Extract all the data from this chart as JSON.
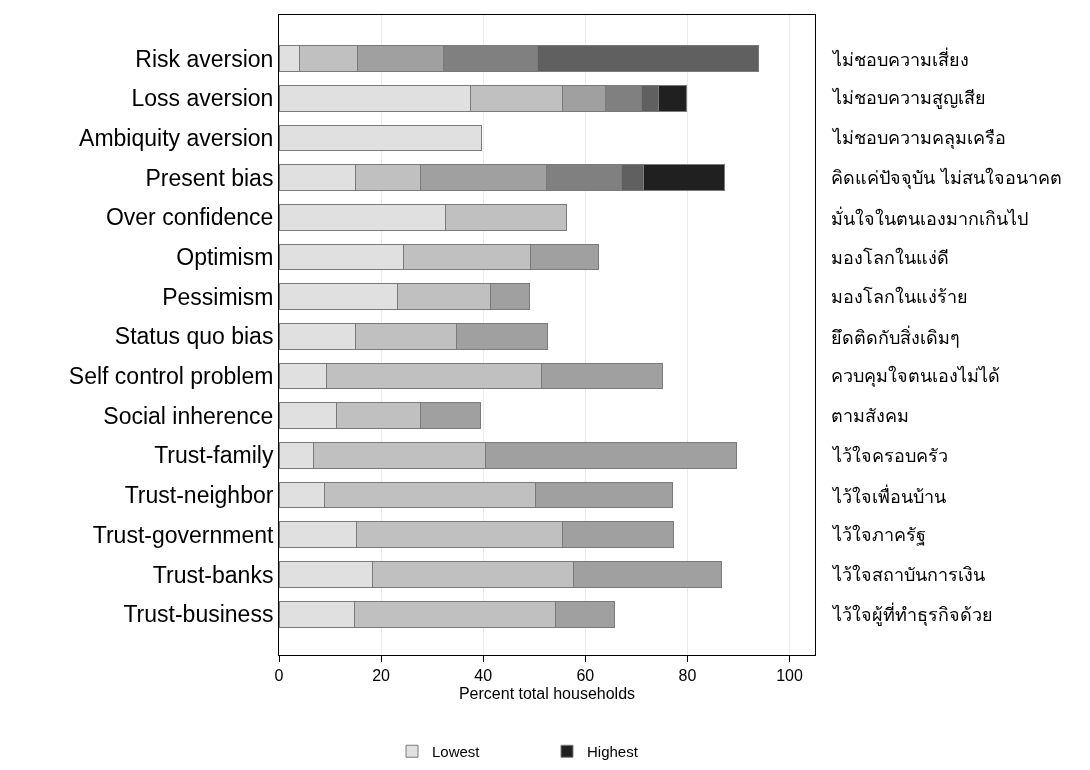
{
  "chart_data": {
    "type": "bar",
    "orientation": "horizontal",
    "stacked": true,
    "categories": [
      "Risk aversion",
      "Loss aversion",
      "Ambiquity aversion",
      "Present bias",
      "Over confidence",
      "Optimism",
      "Pessimism",
      "Status quo bias",
      "Self control problem",
      "Social inherence",
      "Trust-family",
      "Trust-neighbor",
      "Trust-government",
      "Trust-banks",
      "Trust-business"
    ],
    "y2_categories": [
      "ไม่ชอบความเสี่ยง",
      "ไม่ชอบความสูญเสีย",
      "ไม่ชอบความคลุมเครือ",
      "คิดแค่ปัจจุบัน ไม่สนใจอนาคต",
      "มั่นใจในตนเองมากเกินไป",
      "มองโลกในแง่ดี",
      "มองโลกในแง่ร้าย",
      "ยึดติดกับสิ่งเดิมๆ",
      "ควบคุมใจตนเองไม่ได้",
      "ตามสังคม",
      "ไว้ใจครอบครัว",
      "ไว้ใจเพื่อนบ้าน",
      "ไว้ใจภาครัฐ",
      "ไว้ใจสถาบันการเงิน",
      "ไว้ใจผู้ที่ทำธุรกิจด้วย"
    ],
    "series": [
      {
        "name": "Lowest",
        "color": "#e0e0e0",
        "values": [
          4.0,
          37.5,
          39.7,
          15.0,
          32.6,
          24.4,
          23.2,
          15.0,
          9.3,
          11.2,
          6.7,
          9.0,
          15.2,
          18.4,
          14.7
        ]
      },
      {
        "color": "#c0c0c0",
        "values": [
          11.4,
          18.0,
          null,
          12.7,
          23.7,
          24.9,
          18.2,
          19.8,
          42.1,
          16.6,
          33.8,
          41.3,
          40.4,
          39.2,
          39.4
        ]
      },
      {
        "color": "#a0a0a0",
        "values": [
          16.8,
          8.4,
          null,
          24.7,
          null,
          13.2,
          7.7,
          17.7,
          23.7,
          11.7,
          49.2,
          26.8,
          21.7,
          29.0,
          11.7
        ]
      },
      {
        "color": "#808080",
        "values": [
          18.5,
          7.2,
          null,
          14.7,
          null,
          null,
          null,
          null,
          null,
          null,
          null,
          null,
          null,
          null,
          null
        ]
      },
      {
        "color": "#606060",
        "values": [
          43.3,
          3.3,
          null,
          4.3,
          null,
          null,
          null,
          null,
          null,
          null,
          null,
          null,
          null,
          null,
          null
        ]
      },
      {
        "name": "Highest",
        "color": "#202020",
        "values": [
          null,
          5.5,
          null,
          15.9,
          null,
          null,
          null,
          null,
          null,
          null,
          null,
          null,
          null,
          null,
          null
        ]
      }
    ],
    "xlabel": "Percent total households",
    "xlim": [
      0,
      105
    ],
    "xticks": [
      0,
      20,
      40,
      60,
      80,
      100
    ],
    "grid": "x",
    "legend": "bottom"
  }
}
